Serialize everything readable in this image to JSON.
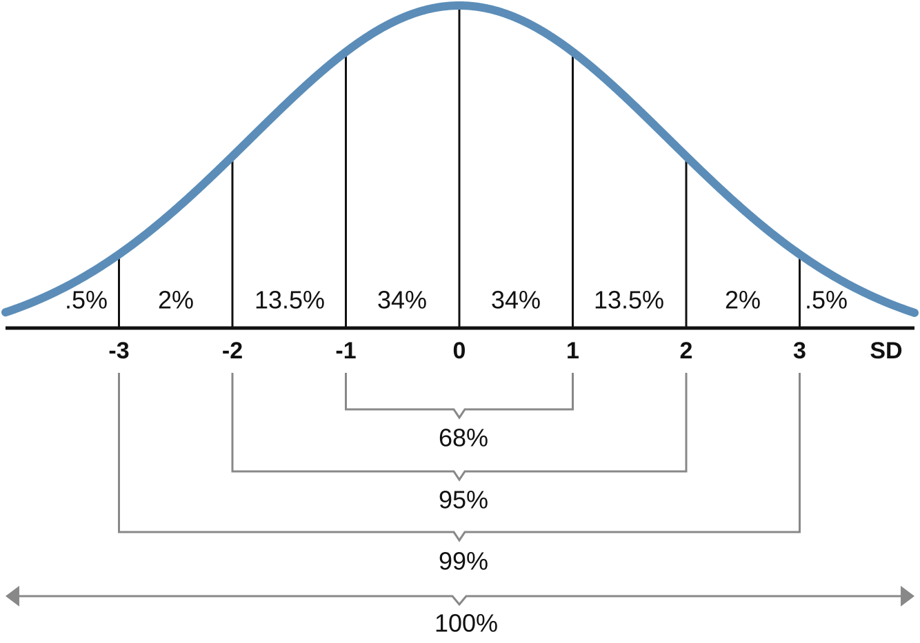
{
  "segments": [
    ".5%",
    "2%",
    "13.5%",
    "34%",
    "34%",
    "13.5%",
    "2%",
    ".5%"
  ],
  "sd_ticks": [
    "-3",
    "-2",
    "-1",
    "0",
    "1",
    "2",
    "3"
  ],
  "axis_label": "SD",
  "brackets": [
    "68%",
    "95%",
    "99%",
    "100%"
  ]
}
